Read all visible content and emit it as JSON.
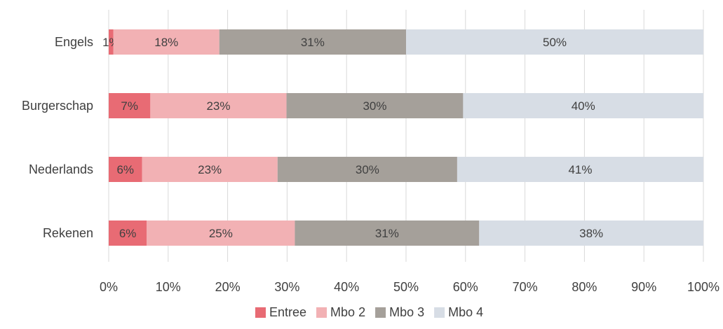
{
  "chart_data": {
    "type": "bar",
    "orientation": "horizontal",
    "stacked": "100%",
    "categories": [
      "Engels",
      "Burgerschap",
      "Nederlands",
      "Rekenen"
    ],
    "series": [
      {
        "name": "Entree",
        "color": "#e86b74",
        "values": [
          0.8,
          7,
          5.6,
          6.4
        ],
        "labels": [
          "1%",
          "7%",
          "6%",
          "6%"
        ]
      },
      {
        "name": "Mbo 2",
        "color": "#f2b1b4",
        "values": [
          17.8,
          22.9,
          22.8,
          24.9
        ],
        "labels": [
          "18%",
          "23%",
          "23%",
          "25%"
        ]
      },
      {
        "name": "Mbo 3",
        "color": "#a5a09a",
        "values": [
          31.4,
          29.7,
          30.2,
          31
        ],
        "labels": [
          "31%",
          "30%",
          "30%",
          "31%"
        ]
      },
      {
        "name": "Mbo 4",
        "color": "#d7dde5",
        "values": [
          50,
          40.4,
          41.4,
          37.7
        ],
        "labels": [
          "50%",
          "40%",
          "41%",
          "38%"
        ]
      }
    ],
    "xlim": [
      0,
      100
    ],
    "xticks": [
      "0%",
      "10%",
      "20%",
      "30%",
      "40%",
      "50%",
      "60%",
      "70%",
      "80%",
      "90%",
      "100%"
    ],
    "grid": "vertical",
    "legend": "bottom"
  }
}
